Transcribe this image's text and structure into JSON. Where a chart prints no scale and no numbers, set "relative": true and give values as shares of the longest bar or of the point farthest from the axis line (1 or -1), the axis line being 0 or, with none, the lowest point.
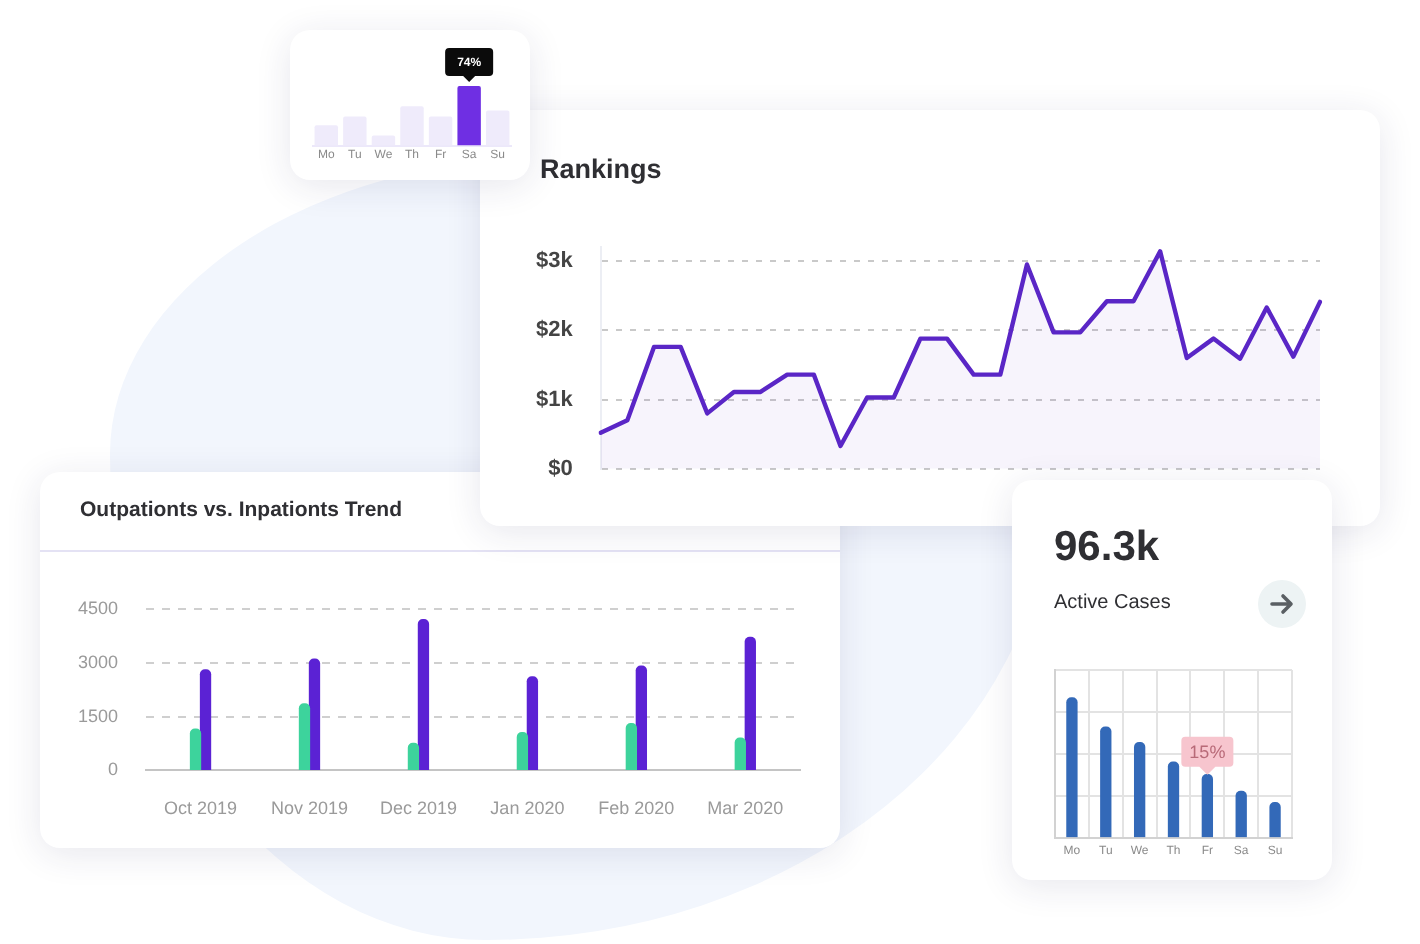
{
  "chart_data": [
    {
      "type": "bar",
      "categories": [
        "Mo",
        "Tu",
        "We",
        "Th",
        "Fr",
        "Sa",
        "Su"
      ],
      "values": [
        0.34,
        0.49,
        0.17,
        0.66,
        0.49,
        1,
        0.59
      ],
      "colors": [
        "#efebfb",
        "#efebfb",
        "#efebfb",
        "#efebfb",
        "#efebfb",
        "#6f2fe3",
        "#efebfb"
      ],
      "relative": true,
      "tick_labels": "x",
      "annotations": [
        {
          "text": "74%",
          "x": "Sa",
          "y": 1
        }
      ]
    },
    {
      "type": "area",
      "title": "Rankings",
      "categories": [
        null,
        null,
        null,
        null,
        null,
        null,
        null,
        null,
        null,
        null,
        null,
        null,
        null,
        null,
        null,
        null,
        null,
        null,
        null,
        null,
        null,
        null,
        null,
        null,
        null,
        null,
        null,
        null
      ],
      "values": [
        520,
        700,
        1760,
        1760,
        800,
        1110,
        1110,
        1360,
        1360,
        330,
        1030,
        1030,
        1880,
        1880,
        1360,
        1360,
        2950,
        1970,
        1970,
        2420,
        2420,
        3140,
        1600,
        1880,
        1590,
        2330,
        1620,
        2410
      ],
      "color": "#5a26c6",
      "marker": "none",
      "ylim": [
        0,
        3200
      ],
      "yticks": [
        {
          "value": 0,
          "label": "$0"
        },
        {
          "value": 1000,
          "label": "$1k"
        },
        {
          "value": 2000,
          "label": "$2k"
        },
        {
          "value": 3000,
          "label": "$3k"
        }
      ],
      "grid": "y",
      "tick_labels": "y"
    },
    {
      "type": "bar",
      "title": "Outpationts vs. Inpationts Trend",
      "categories": [
        "Oct 2019",
        "Nov 2019",
        "Dec 2019",
        "Jan 2020",
        "Feb 2020",
        "Mar 2020"
      ],
      "series": [
        {
          "color": "#3dd39c",
          "values": [
            1150,
            1850,
            750,
            1050,
            1300,
            900
          ]
        },
        {
          "color": "#5b22d4",
          "values": [
            2800,
            3100,
            4200,
            2600,
            2900,
            3700
          ]
        }
      ],
      "ylim": [
        0,
        4500
      ],
      "yticks": [
        0,
        1500,
        3000,
        4500
      ],
      "grid": "y"
    },
    {
      "type": "bar",
      "title": "96.3k",
      "subtitle": "Active Cases",
      "categories": [
        "Mo",
        "Tu",
        "We",
        "Th",
        "Fr",
        "Sa",
        "Su"
      ],
      "values": [
        1,
        0.79,
        0.68,
        0.54,
        0.45,
        0.33,
        0.25
      ],
      "color": "#3369b8",
      "relative": true,
      "grid": true,
      "tick_labels": "x",
      "annotations": [
        {
          "text": "15%",
          "x": "Fr",
          "y": 0.45
        }
      ]
    }
  ]
}
